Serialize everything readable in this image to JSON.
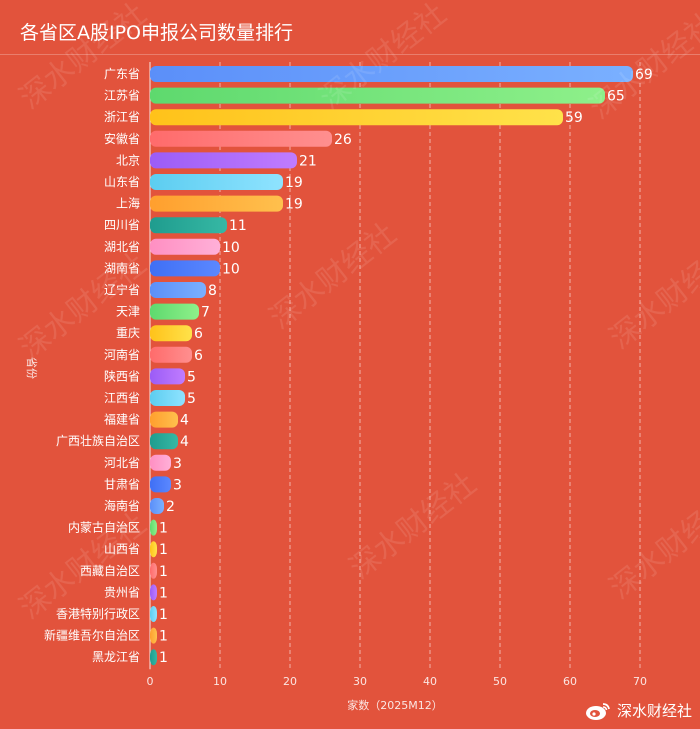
{
  "title": "各省区A股IPO申报公司数量排行",
  "watermark_text": "深水财经社",
  "brand_text": "深水财经社",
  "chart_data": {
    "type": "bar",
    "orientation": "horizontal",
    "title": "各省区A股IPO申报公司数量排行",
    "xlabel": "家数（2025M12）",
    "ylabel": "省份",
    "xlim": [
      0,
      70
    ],
    "xticks": [
      0,
      10,
      20,
      30,
      40,
      50,
      60,
      70
    ],
    "grid": true,
    "categories": [
      "广东省",
      "江苏省",
      "浙江省",
      "安徽省",
      "北京",
      "山东省",
      "上海",
      "四川省",
      "湖北省",
      "湖南省",
      "辽宁省",
      "天津",
      "重庆",
      "河南省",
      "陕西省",
      "江西省",
      "福建省",
      "广西壮族自治区",
      "河北省",
      "甘肃省",
      "海南省",
      "内蒙古自治区",
      "山西省",
      "西藏自治区",
      "贵州省",
      "香港特别行政区",
      "新疆维吾尔自治区",
      "黑龙江省"
    ],
    "values": [
      69,
      65,
      59,
      26,
      21,
      19,
      19,
      11,
      10,
      10,
      8,
      7,
      6,
      6,
      5,
      5,
      4,
      4,
      3,
      3,
      2,
      1,
      1,
      1,
      1,
      1,
      1,
      1
    ],
    "colors": [
      [
        "#5b8ff9",
        "#7ab0ff"
      ],
      [
        "#5ed96e",
        "#8ef08a"
      ],
      [
        "#ffc21a",
        "#ffe24a"
      ],
      [
        "#ff6b6b",
        "#ff8f8f"
      ],
      [
        "#9b5cf6",
        "#c07cff"
      ],
      [
        "#5ccdf0",
        "#8fe3ff"
      ],
      [
        "#ff9f2e",
        "#ffc04d"
      ],
      [
        "#1f9c8e",
        "#36b8a4"
      ],
      [
        "#ff8fc2",
        "#ffb0d8"
      ],
      [
        "#3f6ff5",
        "#5b88ff"
      ],
      [
        "#5b8ff9",
        "#7ab0ff"
      ],
      [
        "#5ed96e",
        "#8ef08a"
      ],
      [
        "#ffc21a",
        "#ffe24a"
      ],
      [
        "#ff6b6b",
        "#ff8f8f"
      ],
      [
        "#9b5cf6",
        "#c07cff"
      ],
      [
        "#5ccdf0",
        "#8fe3ff"
      ],
      [
        "#ff9f2e",
        "#ffc04d"
      ],
      [
        "#1f9c8e",
        "#36b8a4"
      ],
      [
        "#ff8fc2",
        "#ffb0d8"
      ],
      [
        "#3f6ff5",
        "#5b88ff"
      ],
      [
        "#5b8ff9",
        "#7ab0ff"
      ],
      [
        "#5ed96e",
        "#8ef08a"
      ],
      [
        "#ffc21a",
        "#ffe24a"
      ],
      [
        "#ff6b6b",
        "#ff8f8f"
      ],
      [
        "#9b5cf6",
        "#c07cff"
      ],
      [
        "#5ccdf0",
        "#8fe3ff"
      ],
      [
        "#ff9f2e",
        "#ffc04d"
      ],
      [
        "#1f9c8e",
        "#36b8a4"
      ]
    ]
  }
}
